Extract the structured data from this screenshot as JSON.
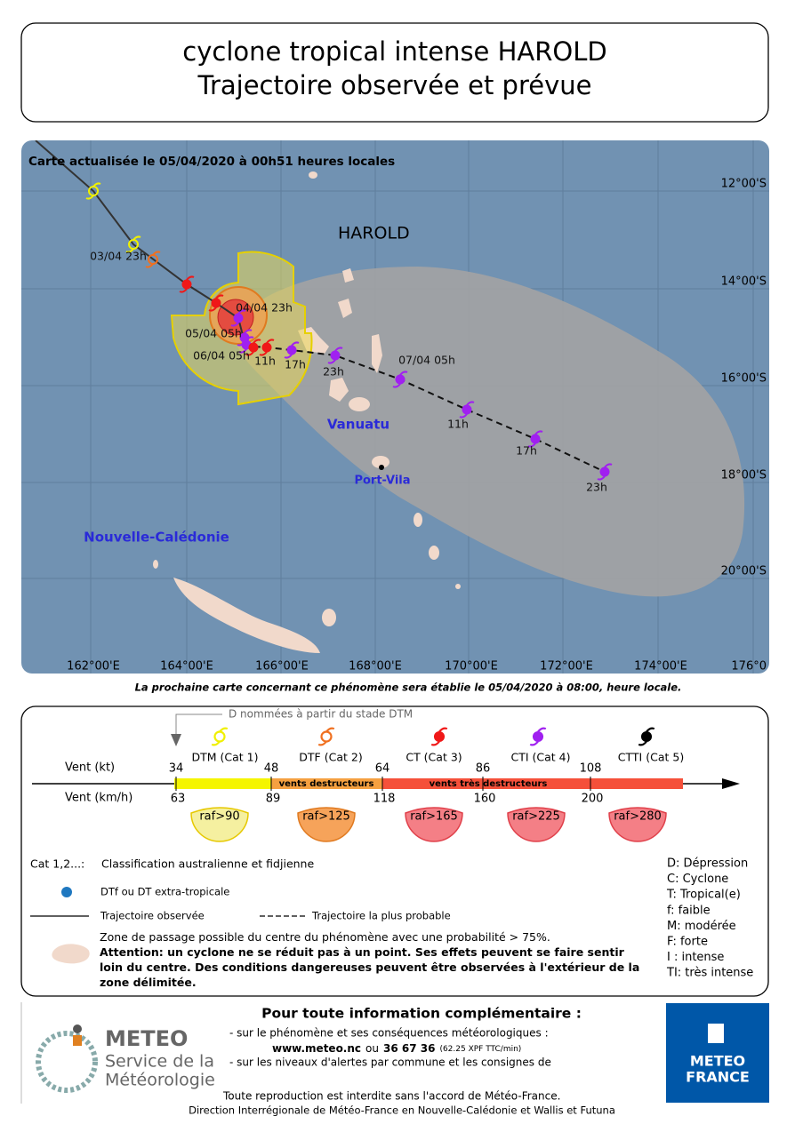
{
  "header": {
    "title_lines": [
      "cyclone tropical intense HAROLD",
      "Trajectoire observée et prévue"
    ]
  },
  "map": {
    "update_note": "Carte actualisée le 05/04/2020 à 00h51 heures locales",
    "cyclone_name": "HAROLD",
    "lat_labels": [
      "12°00'S",
      "14°00'S",
      "16°00'S",
      "18°00'S",
      "20°00'S"
    ],
    "lon_labels": [
      "162°00'E",
      "164°00'E",
      "166°00'E",
      "168°00'E",
      "170°00'E",
      "172°00'E",
      "174°00'E",
      "176°0"
    ],
    "places": [
      "Vanuatu",
      "Port-Vila",
      "Nouvelle-Calédonie"
    ],
    "track_labels": [
      "03/04 23h",
      "04/04 23h",
      "05/04 05h",
      "06/04 05h",
      "11h",
      "17h",
      "23h",
      "07/04 05h",
      "11h",
      "17h",
      "23h"
    ]
  },
  "next_map_note": "La prochaine carte concernant ce phénomène sera établie le 05/04/2020 à 08:00, heure locale.",
  "legend": {
    "naming_note": "D nommées à partir du stade DTM",
    "wind_kt_label": "Vent (kt)",
    "wind_kmh_label": "Vent (km/h)",
    "categories": [
      {
        "label": "DTM (Cat 1)",
        "gust": "raf>90"
      },
      {
        "label": "DTF (Cat 2)",
        "gust": "raf>125"
      },
      {
        "label": "CT (Cat 3)",
        "gust": "raf>165"
      },
      {
        "label": "CTI (Cat 4)",
        "gust": "raf>225"
      },
      {
        "label": "CTTI (Cat 5)",
        "gust": "raf>280"
      }
    ],
    "kt_thresholds": [
      34,
      48,
      64,
      86,
      108
    ],
    "kmh_thresholds": [
      63,
      89,
      118,
      160,
      200
    ],
    "band_labels": [
      "vents destructeurs",
      "vents très destructeurs"
    ],
    "classification": [
      "Cat 1,2...:",
      "Classification australienne et fidjienne"
    ],
    "items": [
      "DTf ou DT extra-tropicale",
      "Trajectoire observée",
      "Trajectoire la plus probable"
    ],
    "zone_text": "Zone de passage possible du centre du phénomène avec une probabilité > 75%.",
    "warning": "Attention: un cyclone ne se réduit pas à un point. Ses effets peuvent se faire sentir loin du centre. Des conditions dangereuses peuvent être observées à l'extérieur de la zone délimitée.",
    "abbreviations": [
      "D: Dépression",
      "C: Cyclone",
      "T: Tropical(e)",
      "f: faible",
      "M: modérée",
      "F: forte",
      "I : intense",
      "TI: très intense"
    ]
  },
  "footer": {
    "logo_left": [
      "METEO",
      "Service de la",
      "Météorologie"
    ],
    "info_title": "Pour toute information complémentaire :",
    "info_line1": "- sur le phénomène et ses conséquences météorologiques :",
    "website": "www.meteo.nc",
    "or": "ou",
    "phone": "36 67 36",
    "phone_note": "(62.25 XPF TTC/min)",
    "info_line2": "- sur les niveaux d'alertes par commune et les consignes de",
    "reproduction": "Toute reproduction est interdite sans l'accord de Météo-France.",
    "direction": "Direction Interrégionale de Météo-France en Nouvelle-Calédonie et Wallis et Futuna",
    "logo_right": [
      "METEO",
      "FRANCE"
    ]
  }
}
